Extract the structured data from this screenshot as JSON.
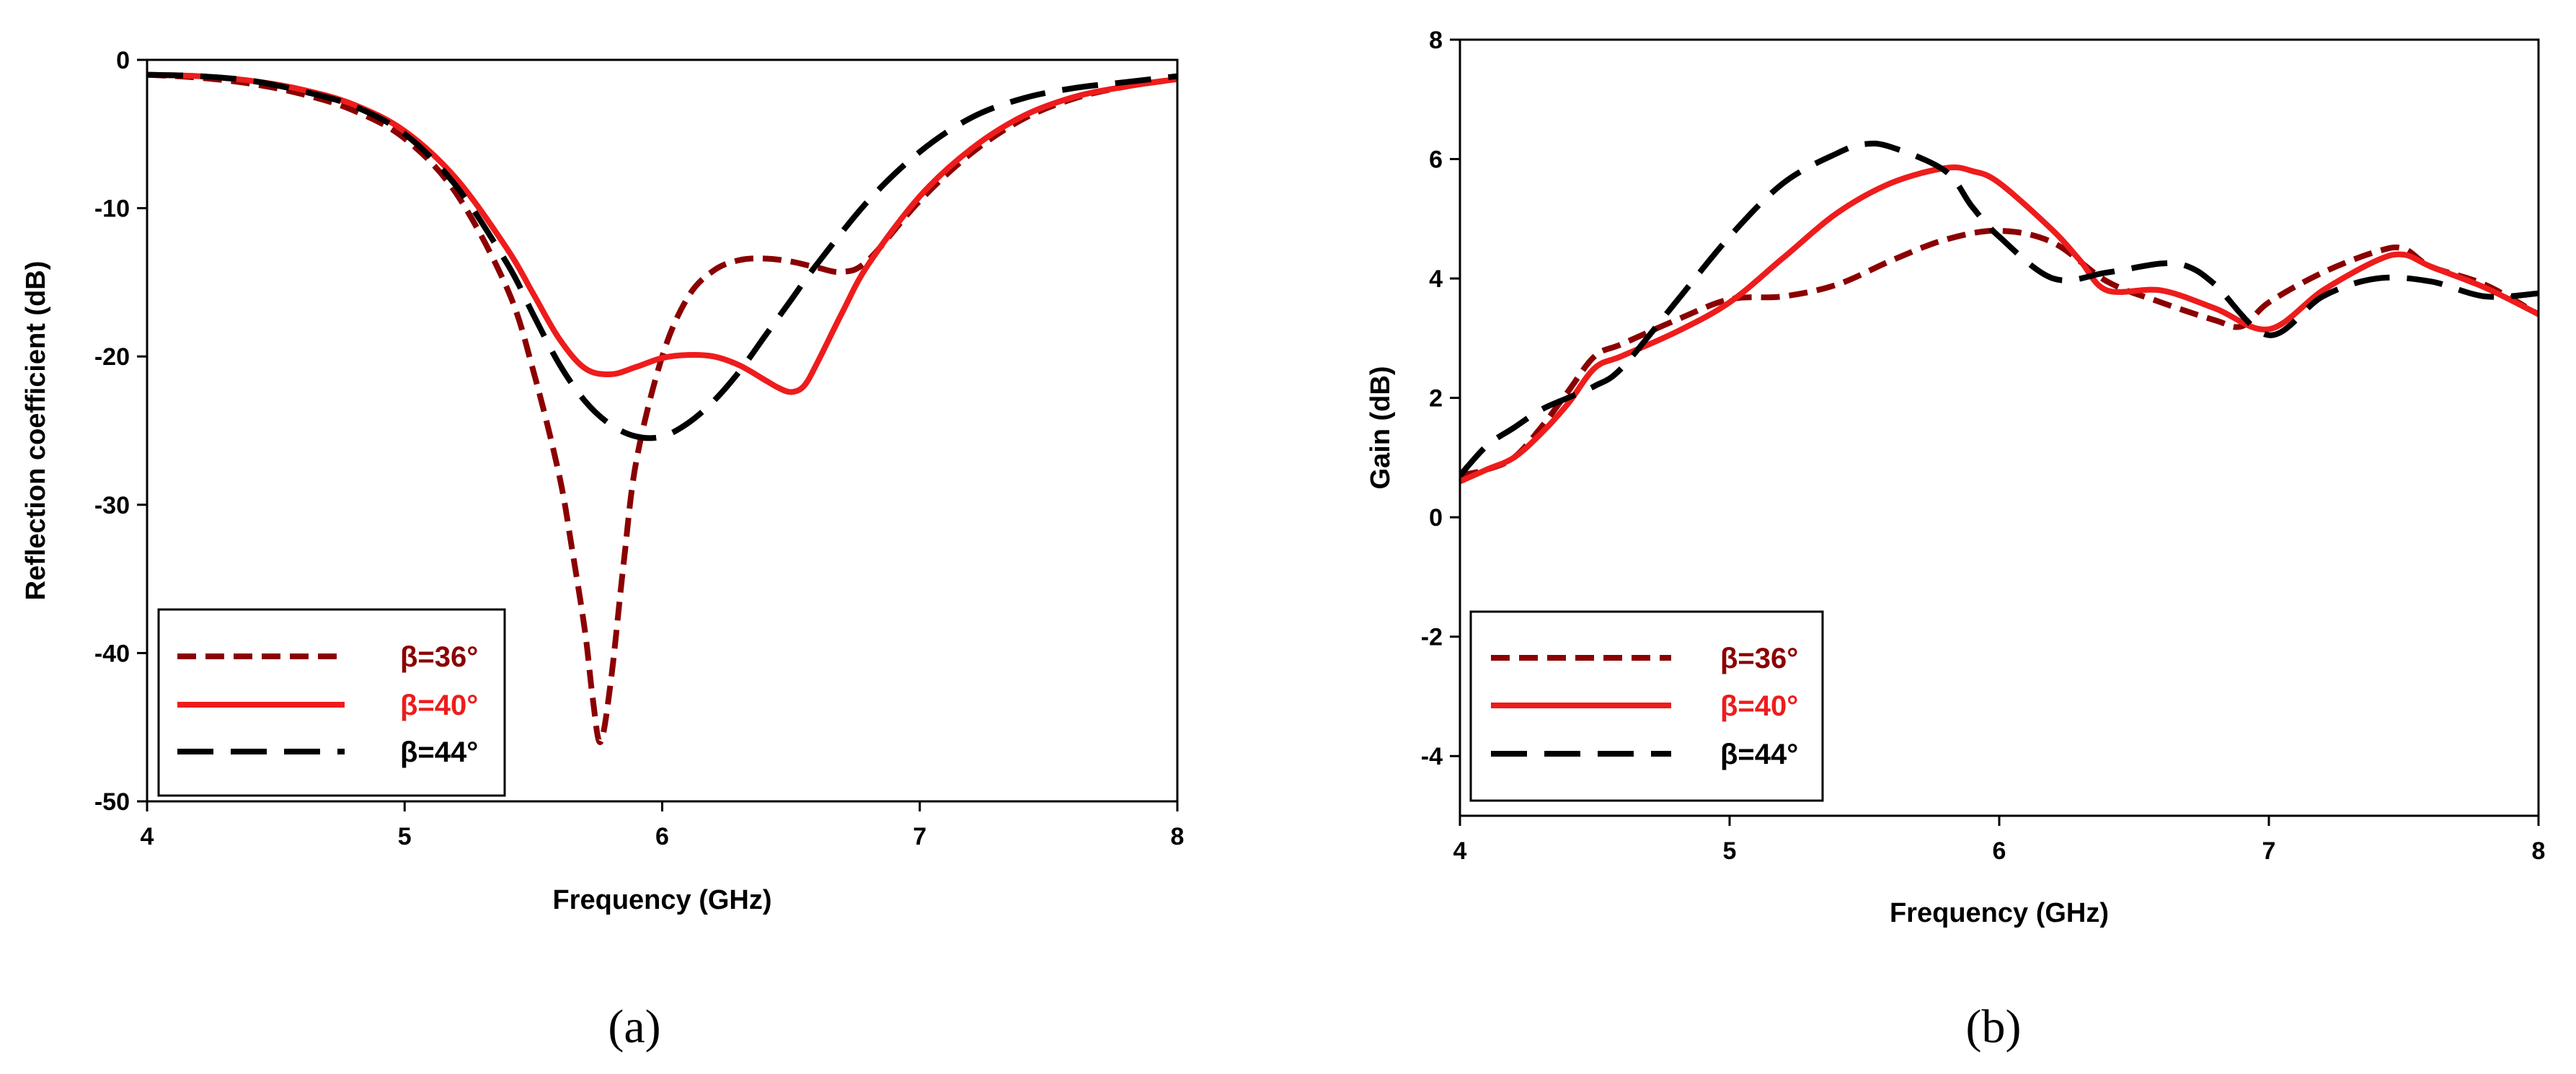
{
  "chart_data": [
    {
      "type": "line",
      "caption": "(a)",
      "title": "",
      "xlabel": "Frequency (GHz)",
      "ylabel": "Reflection coefficient (dB)",
      "xlim": [
        4,
        8
      ],
      "ylim": [
        -50,
        0
      ],
      "xticks": [
        4,
        5,
        6,
        7,
        8
      ],
      "yticks": [
        0,
        -10,
        -20,
        -30,
        -40,
        -50
      ],
      "grid": false,
      "legend_position": "bottom-left",
      "series": [
        {
          "name": "β=36°",
          "color": "#8b0000",
          "dash": "dashed",
          "x": [
            4.0,
            4.2,
            4.4,
            4.6,
            4.8,
            5.0,
            5.2,
            5.4,
            5.5,
            5.6,
            5.65,
            5.7,
            5.73,
            5.76,
            5.8,
            5.85,
            5.9,
            6.0,
            6.1,
            6.2,
            6.3,
            6.4,
            6.5,
            6.6,
            6.7,
            6.8,
            7.0,
            7.2,
            7.4,
            7.6,
            7.8,
            8.0
          ],
          "y": [
            -1.0,
            -1.2,
            -1.6,
            -2.3,
            -3.4,
            -5.3,
            -9.0,
            -15.5,
            -21.0,
            -28.0,
            -33.0,
            -38.5,
            -43.0,
            -46.0,
            -42.0,
            -34.0,
            -27.0,
            -20.0,
            -16.0,
            -14.2,
            -13.5,
            -13.4,
            -13.6,
            -14.0,
            -14.3,
            -13.5,
            -9.5,
            -6.3,
            -4.0,
            -2.6,
            -1.8,
            -1.3
          ]
        },
        {
          "name": "β=40°",
          "color": "#ee1c1c",
          "dash": "solid",
          "x": [
            4.0,
            4.2,
            4.4,
            4.6,
            4.8,
            5.0,
            5.2,
            5.4,
            5.5,
            5.6,
            5.7,
            5.8,
            5.9,
            6.0,
            6.1,
            6.2,
            6.3,
            6.4,
            6.45,
            6.5,
            6.55,
            6.6,
            6.7,
            6.8,
            7.0,
            7.2,
            7.4,
            7.6,
            7.8,
            8.0
          ],
          "y": [
            -1.0,
            -1.1,
            -1.4,
            -2.0,
            -3.0,
            -4.8,
            -8.0,
            -12.8,
            -15.8,
            -18.8,
            -20.8,
            -21.2,
            -20.7,
            -20.1,
            -19.9,
            -20.0,
            -20.6,
            -21.6,
            -22.1,
            -22.4,
            -22.0,
            -20.5,
            -17.0,
            -13.8,
            -9.2,
            -6.0,
            -3.8,
            -2.5,
            -1.8,
            -1.3
          ]
        },
        {
          "name": "β=44°",
          "color": "#000000",
          "dash": "longdash",
          "x": [
            4.0,
            4.2,
            4.4,
            4.6,
            4.8,
            5.0,
            5.2,
            5.4,
            5.5,
            5.6,
            5.7,
            5.8,
            5.9,
            6.0,
            6.1,
            6.2,
            6.3,
            6.4,
            6.5,
            6.6,
            6.8,
            7.0,
            7.2,
            7.4,
            7.6,
            7.8,
            8.0
          ],
          "y": [
            -1.0,
            -1.1,
            -1.4,
            -2.1,
            -3.1,
            -5.0,
            -8.5,
            -13.8,
            -17.2,
            -20.5,
            -23.0,
            -24.6,
            -25.4,
            -25.4,
            -24.5,
            -23.0,
            -21.0,
            -18.6,
            -16.2,
            -13.8,
            -9.5,
            -6.2,
            -3.9,
            -2.6,
            -1.9,
            -1.5,
            -1.1
          ]
        }
      ]
    },
    {
      "type": "line",
      "caption": "(b)",
      "title": "",
      "xlabel": "Frequency (GHz)",
      "ylabel": "Gain (dB)",
      "xlim": [
        4,
        8
      ],
      "ylim": [
        -5,
        8
      ],
      "xticks": [
        4,
        5,
        6,
        7,
        8
      ],
      "yticks": [
        8,
        6,
        4,
        2,
        0,
        -2,
        -4
      ],
      "grid": false,
      "legend_position": "bottom-left",
      "series": [
        {
          "name": "β=36°",
          "color": "#8b0000",
          "dash": "dashed",
          "x": [
            4.0,
            4.1,
            4.2,
            4.3,
            4.4,
            4.5,
            4.6,
            4.8,
            5.0,
            5.2,
            5.4,
            5.6,
            5.8,
            6.0,
            6.2,
            6.4,
            6.6,
            6.8,
            6.9,
            7.0,
            7.2,
            7.4,
            7.5,
            7.6,
            7.8,
            8.0
          ],
          "y": [
            0.7,
            0.8,
            1.0,
            1.5,
            2.1,
            2.7,
            2.9,
            3.3,
            3.65,
            3.7,
            3.9,
            4.3,
            4.65,
            4.8,
            4.6,
            3.95,
            3.6,
            3.3,
            3.2,
            3.6,
            4.1,
            4.45,
            4.5,
            4.2,
            3.9,
            3.4
          ]
        },
        {
          "name": "β=40°",
          "color": "#ee1c1c",
          "dash": "solid",
          "x": [
            4.0,
            4.1,
            4.2,
            4.3,
            4.4,
            4.5,
            4.6,
            4.8,
            5.0,
            5.2,
            5.4,
            5.6,
            5.8,
            5.9,
            6.0,
            6.2,
            6.3,
            6.4,
            6.6,
            6.8,
            7.0,
            7.2,
            7.4,
            7.5,
            7.6,
            7.8,
            8.0
          ],
          "y": [
            0.6,
            0.8,
            1.0,
            1.4,
            1.9,
            2.5,
            2.7,
            3.1,
            3.6,
            4.35,
            5.1,
            5.6,
            5.85,
            5.8,
            5.6,
            4.8,
            4.3,
            3.8,
            3.8,
            3.5,
            3.15,
            3.8,
            4.3,
            4.4,
            4.2,
            3.85,
            3.4
          ]
        },
        {
          "name": "β=44°",
          "color": "#000000",
          "dash": "longdash",
          "x": [
            4.0,
            4.1,
            4.2,
            4.3,
            4.4,
            4.5,
            4.6,
            4.8,
            5.0,
            5.2,
            5.4,
            5.5,
            5.6,
            5.8,
            5.9,
            6.0,
            6.2,
            6.4,
            6.6,
            6.7,
            6.8,
            7.0,
            7.2,
            7.4,
            7.6,
            7.8,
            8.0
          ],
          "y": [
            0.7,
            1.2,
            1.5,
            1.8,
            2.0,
            2.2,
            2.5,
            3.6,
            4.7,
            5.6,
            6.1,
            6.25,
            6.2,
            5.8,
            5.2,
            4.7,
            4.0,
            4.1,
            4.25,
            4.2,
            3.9,
            3.05,
            3.7,
            4.0,
            3.95,
            3.7,
            3.75
          ]
        }
      ]
    }
  ]
}
